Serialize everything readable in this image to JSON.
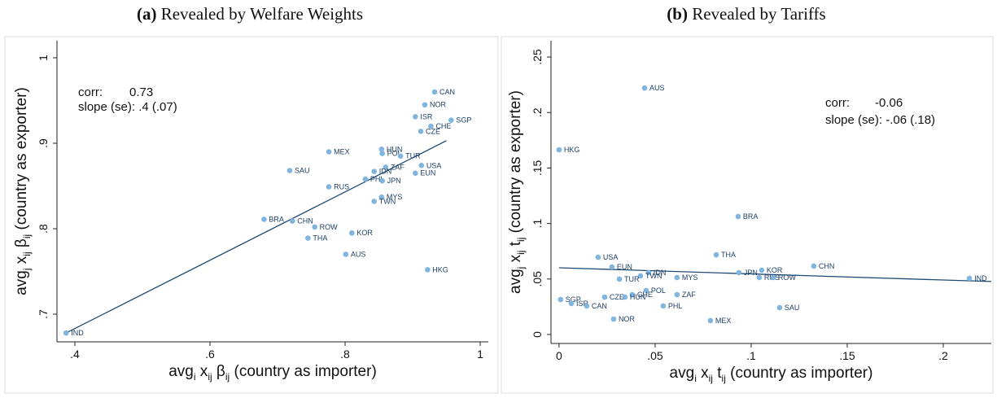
{
  "chart_data": [
    {
      "type": "scatter",
      "panel": "(a)",
      "title": "Revealed by Welfare Weights",
      "xlabel": [
        "avg",
        "i",
        " x",
        "ij",
        " β",
        "ij",
        " (country as importer)"
      ],
      "ylabel": [
        "avg",
        "j",
        " x",
        "ij",
        " β",
        "ij",
        " (country as exporter)"
      ],
      "annotations": [
        "corr:",
        "0.73",
        "slope (se): .4 (.07)"
      ],
      "color": "#7fb5df",
      "label_color": "#1d3e66",
      "labels": [
        "CAN",
        "NOR",
        "ISR",
        "CHE",
        "SGP",
        "CZE",
        "HUN",
        "POL",
        "TUR",
        "MEX",
        "USA",
        "ZAF",
        "IDN",
        "EUN",
        "SAU",
        "PHL",
        "JPN",
        "RUS",
        "MYS",
        "TWN",
        "BRA",
        "CHN",
        "ROW",
        "KOR",
        "THA",
        "AUS",
        "HKG",
        "IND"
      ],
      "x": [
        0.9325,
        0.918,
        0.904,
        0.927,
        0.957,
        0.912,
        0.854,
        0.855,
        0.882,
        0.776,
        0.913,
        0.86,
        0.843,
        0.904,
        0.718,
        0.83,
        0.855,
        0.776,
        0.854,
        0.843,
        0.68,
        0.722,
        0.755,
        0.81,
        0.745,
        0.801,
        0.922,
        0.387
      ],
      "y": [
        0.96,
        0.945,
        0.931,
        0.92,
        0.927,
        0.914,
        0.893,
        0.888,
        0.885,
        0.89,
        0.874,
        0.872,
        0.867,
        0.865,
        0.868,
        0.858,
        0.856,
        0.849,
        0.837,
        0.832,
        0.811,
        0.809,
        0.802,
        0.795,
        0.789,
        0.77,
        0.752,
        0.678
      ],
      "fit": {
        "x": [
          0.387,
          0.95
        ],
        "y": [
          0.678,
          0.903
        ],
        "color": "#1f4a72"
      },
      "xlim": [
        0.3735,
        1.012
      ],
      "ylim": [
        0.6676,
        1.02
      ],
      "xticks": [
        {
          "value": 0.4,
          "label": ".4"
        },
        {
          "value": 0.6,
          "label": ".6"
        },
        {
          "value": 0.8,
          "label": ".8"
        },
        1
      ],
      "yticks": [
        {
          "value": 0.7,
          "label": ".7"
        },
        {
          "value": 0.8,
          "label": ".8"
        },
        {
          "value": 0.9,
          "label": ".9"
        },
        1
      ]
    },
    {
      "type": "scatter",
      "panel": "(b)",
      "title": "Revealed by Tariffs",
      "xlabel": [
        "avg",
        "i",
        " x",
        "ij",
        " t",
        "ij",
        " (country as importer)"
      ],
      "ylabel": [
        "avg",
        "j",
        " x",
        "ij",
        " t",
        "ij",
        " (country as exporter)"
      ],
      "annotations": [
        "corr:",
        "-0.06",
        "slope (se): -.06 (.18)"
      ],
      "color": "#7fb5df",
      "label_color": "#1d3e66",
      "labels": [
        "AUS",
        "HKG",
        "BRA",
        "USA",
        "THA",
        "EUN",
        "CHN",
        "JPN",
        "KOR",
        "IDN",
        "TWN",
        "TUR",
        "MYS",
        "RUS",
        "ROW",
        "IND",
        "POL",
        "CHE",
        "ZAF",
        "CZE",
        "HUN",
        "SGP",
        "ISR",
        "CAN",
        "PHL",
        "SAU",
        "NOR",
        "MEX"
      ],
      "x": [
        0.0445,
        0.0,
        0.0932,
        0.0203,
        0.0818,
        0.0275,
        0.1326,
        0.0936,
        0.1055,
        0.0466,
        0.0424,
        0.0314,
        0.0614,
        0.1042,
        0.1114,
        0.2136,
        0.0453,
        0.0381,
        0.0614,
        0.0237,
        0.0343,
        0.0008,
        0.0064,
        0.0144,
        0.0542,
        0.1148,
        0.0284,
        0.0788
      ],
      "y": [
        0.222,
        0.1664,
        0.1063,
        0.0696,
        0.0718,
        0.0608,
        0.0616,
        0.0557,
        0.0579,
        0.0557,
        0.0528,
        0.0499,
        0.0513,
        0.0513,
        0.0513,
        0.0506,
        0.0396,
        0.0359,
        0.0359,
        0.0337,
        0.0337,
        0.0315,
        0.0279,
        0.0257,
        0.0257,
        0.0242,
        0.0139,
        0.0125
      ],
      "fit": {
        "x": [
          0.0,
          0.225
        ],
        "y": [
          0.0601,
          0.0477
        ],
        "color": "#1f4a72"
      },
      "xlim": [
        -0.0042,
        0.225
      ],
      "ylim": [
        -0.0081,
        0.2647
      ],
      "xticks": [
        0,
        {
          "value": 0.05,
          "label": ".05"
        },
        {
          "value": 0.1,
          "label": ".1"
        },
        {
          "value": 0.15,
          "label": ".15"
        },
        {
          "value": 0.2,
          "label": ".2"
        }
      ],
      "yticks": [
        0,
        {
          "value": 0.05,
          "label": ".05"
        },
        {
          "value": 0.1,
          "label": ".1"
        },
        {
          "value": 0.15,
          "label": ".15"
        },
        {
          "value": 0.2,
          "label": ".2"
        },
        {
          "value": 0.25,
          "label": ".25"
        }
      ]
    }
  ]
}
